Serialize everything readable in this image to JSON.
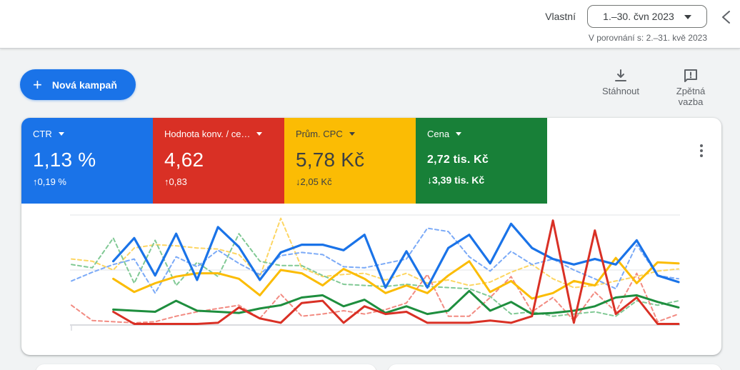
{
  "header": {
    "date_range_label": "Vlastní",
    "date_range_value": "1.–30. čvn 2023",
    "comparison_text": "V porovnání s: 2.–31. kvě 2023"
  },
  "toolbar": {
    "new_campaign_label": "Nová kampaň",
    "plus_glyph": "+",
    "download_label": "Stáhnout",
    "feedback_label": "Zpětná vazba"
  },
  "scorecards": [
    {
      "metric": "CTR",
      "value": "1,13 %",
      "arrow": "↑",
      "delta": "0,19 %",
      "delta_direction": "up",
      "color": "#1a73e8",
      "text_color": "#ffffff"
    },
    {
      "metric": "Hodnota konv. / ce…",
      "value": "4,62",
      "arrow": "↑",
      "delta": "0,83",
      "delta_direction": "up",
      "color": "#d93025",
      "text_color": "#ffffff"
    },
    {
      "metric": "Prům. CPC",
      "value": "5,78 Kč",
      "arrow": "↓",
      "delta": "2,05 Kč",
      "delta_direction": "down",
      "color": "#fbbc04",
      "text_color": "#3c4043"
    },
    {
      "metric": "Cena",
      "value": "2,72 tis. Kč",
      "arrow": "↓",
      "delta": "3,39 tis. Kč",
      "delta_direction": "down",
      "color": "#188038",
      "text_color": "#ffffff"
    }
  ],
  "chart_data": {
    "type": "line",
    "title": "",
    "xlabel": "",
    "ylabel": "",
    "x_count": 30,
    "x_description": "days of selected period (1.–30. čvn 2023) vs comparison period (2.–31. kvě 2023)",
    "ylim": [
      0,
      100
    ],
    "grid": "horizontal-3-lines",
    "legend": "none",
    "series": [
      {
        "id": "cpc-previous",
        "metric": "Prům. CPC",
        "period": "previous",
        "style": "dashed",
        "color": "#fdd663",
        "width": 2,
        "start_index": 0,
        "values": [
          60,
          58,
          50,
          70,
          73,
          72,
          70,
          69,
          64,
          44,
          97,
          52,
          44,
          46,
          47,
          41,
          47,
          38,
          41,
          36,
          39,
          48,
          55,
          42,
          34,
          36,
          40,
          44,
          49,
          51
        ]
      },
      {
        "id": "cost-previous",
        "metric": "Cena",
        "period": "previous",
        "style": "dashed",
        "color": "#81c995",
        "width": 2,
        "start_index": 0,
        "values": [
          55,
          52,
          79,
          38,
          77,
          36,
          57,
          44,
          83,
          58,
          54,
          54,
          45,
          37,
          36,
          35,
          37,
          35,
          34,
          33,
          26,
          10,
          12,
          8,
          10,
          12,
          8,
          22,
          18,
          22
        ]
      },
      {
        "id": "ctr-previous",
        "metric": "CTR",
        "period": "previous",
        "style": "dashed",
        "color": "#7baaf7",
        "width": 2,
        "start_index": 0,
        "values": [
          40,
          48,
          55,
          60,
          29,
          62,
          53,
          68,
          56,
          46,
          63,
          66,
          64,
          53,
          52,
          56,
          60,
          88,
          85,
          62,
          49,
          67,
          55,
          60,
          50,
          42,
          33,
          73,
          45,
          42
        ]
      },
      {
        "id": "convvalue-previous",
        "metric": "Hodnota konv. / cena",
        "period": "previous",
        "style": "dashed",
        "color": "#f28b82",
        "width": 2,
        "start_index": 0,
        "values": [
          18,
          4,
          3,
          2,
          3,
          8,
          12,
          15,
          18,
          6,
          28,
          8,
          10,
          13,
          10,
          14,
          20,
          46,
          8,
          8,
          25,
          44,
          12,
          25,
          4,
          30,
          12,
          47,
          3,
          10
        ]
      },
      {
        "id": "cost-current",
        "metric": "Cena",
        "period": "current",
        "style": "solid",
        "color": "#1e8e3e",
        "width": 3,
        "start_index": 2,
        "values": [
          14,
          13,
          12,
          22,
          13,
          12,
          11,
          15,
          18,
          25,
          27,
          17,
          23,
          11,
          17,
          10,
          13,
          31,
          13,
          21,
          10,
          11,
          13,
          17,
          25,
          27,
          21,
          16
        ]
      },
      {
        "id": "cpc-current",
        "metric": "Prům. CPC",
        "period": "current",
        "style": "solid",
        "color": "#fbbc04",
        "width": 3,
        "start_index": 2,
        "values": [
          42,
          30,
          38,
          44,
          47,
          47,
          42,
          27,
          50,
          47,
          36,
          51,
          42,
          29,
          36,
          29,
          45,
          58,
          30,
          40,
          24,
          29,
          40,
          36,
          61,
          38,
          57,
          56
        ]
      },
      {
        "id": "ctr-current",
        "metric": "CTR",
        "period": "current",
        "style": "solid",
        "color": "#1a73e8",
        "width": 3.2,
        "start_index": 2,
        "values": [
          58,
          79,
          45,
          83,
          41,
          89,
          71,
          41,
          66,
          73,
          73,
          68,
          82,
          34,
          67,
          34,
          70,
          82,
          56,
          92,
          70,
          60,
          55,
          60,
          55,
          77,
          45,
          39
        ]
      },
      {
        "id": "convvalue-current",
        "metric": "Hodnota konv. / cena",
        "period": "current",
        "style": "solid",
        "color": "#d93025",
        "width": 3,
        "start_index": 2,
        "values": [
          12,
          1,
          1,
          1,
          1,
          2,
          16,
          6,
          2,
          20,
          22,
          2,
          17,
          10,
          12,
          2,
          2,
          2,
          4,
          2,
          8,
          95,
          2,
          86,
          10,
          25,
          1,
          1
        ]
      }
    ]
  }
}
